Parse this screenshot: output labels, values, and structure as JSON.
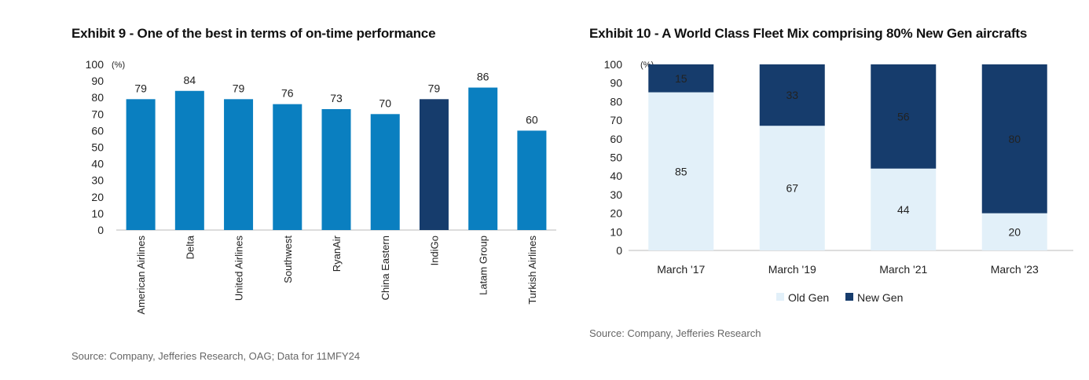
{
  "chart_data": [
    {
      "type": "bar",
      "title": "Exhibit 9 - One of the best in terms of on-time performance",
      "unit_label": "(%)",
      "categories": [
        "American Airlines",
        "Delta",
        "United Airlines",
        "Southwest",
        "RyanAir",
        "China Eastern",
        "IndiGo",
        "Latam Group",
        "Turkish Airlines"
      ],
      "values": [
        79,
        84,
        79,
        76,
        73,
        70,
        79,
        86,
        60
      ],
      "highlight": "IndiGo",
      "ylim": [
        0,
        100
      ],
      "yticks": [
        0,
        10,
        20,
        30,
        40,
        50,
        60,
        70,
        80,
        90,
        100
      ],
      "colors": {
        "default": "#0a7fc0",
        "highlight": "#163c6c"
      },
      "source": "Source: Company, Jefferies Research, OAG; Data for 11MFY24"
    },
    {
      "type": "bar",
      "stacked": true,
      "title": "Exhibit 10 - A World Class Fleet Mix comprising 80% New Gen aircrafts",
      "unit_label": "(%)",
      "categories": [
        "March '17",
        "March '19",
        "March '21",
        "March '23"
      ],
      "series": [
        {
          "name": "Old Gen",
          "values": [
            85,
            67,
            44,
            20
          ],
          "color": "#e2f0f9"
        },
        {
          "name": "New Gen",
          "values": [
            15,
            33,
            56,
            80
          ],
          "color": "#163c6c"
        }
      ],
      "ylim": [
        0,
        100
      ],
      "yticks": [
        0,
        10,
        20,
        30,
        40,
        50,
        60,
        70,
        80,
        90,
        100
      ],
      "legend": "bottom",
      "source": "Source: Company, Jefferies Research"
    }
  ]
}
